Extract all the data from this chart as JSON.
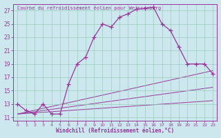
{
  "title": "Courbe du refroidissement éolien pour Weissenburg",
  "xlabel": "Windchill (Refroidissement éolien,°C)",
  "bg_color": "#cce8ee",
  "line_color": "#993399",
  "grid_color": "#99ccbb",
  "line1_x": [
    0,
    1,
    2,
    3,
    4,
    5,
    6,
    7,
    8,
    9,
    10,
    11,
    12,
    13,
    14,
    15,
    16,
    17,
    18,
    19,
    20,
    21,
    22,
    23
  ],
  "line1_y": [
    13,
    12,
    11.5,
    13,
    11.5,
    11.5,
    16,
    19,
    20,
    23,
    25,
    24.5,
    26,
    26.5,
    27.2,
    27.3,
    27.5,
    25,
    24,
    21.5,
    19,
    19,
    19,
    17.5
  ],
  "line2_x": [
    0,
    23
  ],
  "line2_y": [
    11.5,
    18
  ],
  "line3_x": [
    0,
    23
  ],
  "line3_y": [
    11.5,
    15.5
  ],
  "line4_x": [
    0,
    23
  ],
  "line4_y": [
    11.5,
    13.5
  ],
  "xlim": [
    -0.5,
    23.5
  ],
  "ylim": [
    10.5,
    28
  ],
  "xticks": [
    0,
    1,
    2,
    3,
    4,
    5,
    6,
    7,
    8,
    9,
    10,
    11,
    12,
    13,
    14,
    15,
    16,
    17,
    18,
    19,
    20,
    21,
    22,
    23
  ],
  "yticks": [
    11,
    13,
    15,
    17,
    19,
    21,
    23,
    25,
    27
  ]
}
